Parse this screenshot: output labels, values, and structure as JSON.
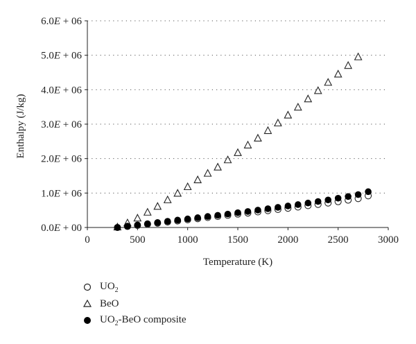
{
  "chart_data": {
    "type": "scatter",
    "title": "",
    "xlabel": "Temperature (K)",
    "ylabel": "Enthalpy (J/kg)",
    "xlim": [
      0,
      3000
    ],
    "ylim": [
      0,
      6000000
    ],
    "x_ticks": [
      0,
      500,
      1000,
      1500,
      2000,
      2500,
      3000
    ],
    "x_tick_labels": [
      "0",
      "500",
      "1000",
      "1500",
      "2000",
      "2500",
      "3000"
    ],
    "y_ticks": [
      0,
      1000000,
      2000000,
      3000000,
      4000000,
      5000000,
      6000000
    ],
    "y_tick_labels": [
      "0.0E + 00",
      "1.0E + 06",
      "2.0E + 06",
      "3.0E + 06",
      "4.0E + 06",
      "5.0E + 06",
      "6.0E + 06"
    ],
    "grid": "horizontal dotted",
    "legend_position": "bottom-left",
    "series": [
      {
        "name": "UO",
        "name_sub": "2",
        "marker": "open-circle",
        "x": [
          300,
          400,
          500,
          600,
          700,
          800,
          900,
          1000,
          1100,
          1200,
          1300,
          1400,
          1500,
          1600,
          1700,
          1800,
          1900,
          2000,
          2100,
          2200,
          2300,
          2400,
          2500,
          2600,
          2700,
          2800
        ],
        "y": [
          0,
          30000,
          60000,
          95000,
          125000,
          160000,
          190000,
          225000,
          255000,
          290000,
          320000,
          355000,
          390000,
          420000,
          455000,
          490000,
          525000,
          560000,
          595000,
          635000,
          670000,
          710000,
          750000,
          795000,
          840000,
          920000
        ]
      },
      {
        "name": "BeO",
        "name_sub": "",
        "marker": "open-triangle",
        "x": [
          300,
          400,
          500,
          600,
          700,
          800,
          900,
          1000,
          1100,
          1200,
          1300,
          1400,
          1500,
          1600,
          1700,
          1800,
          1900,
          2000,
          2100,
          2200,
          2300,
          2400,
          2500,
          2600,
          2700
        ],
        "y": [
          0,
          120000,
          260000,
          430000,
          600000,
          790000,
          980000,
          1170000,
          1370000,
          1560000,
          1740000,
          1950000,
          2160000,
          2380000,
          2580000,
          2800000,
          3020000,
          3250000,
          3480000,
          3720000,
          3960000,
          4200000,
          4440000,
          4690000,
          4940000
        ]
      },
      {
        "name": "UO",
        "name_sub": "2",
        "name_suffix": "-BeO composite",
        "marker": "filled-circle",
        "x": [
          300,
          400,
          500,
          600,
          700,
          800,
          900,
          1000,
          1100,
          1200,
          1300,
          1400,
          1500,
          1600,
          1700,
          1800,
          1900,
          2000,
          2100,
          2200,
          2300,
          2400,
          2500,
          2600,
          2700,
          2800
        ],
        "y": [
          0,
          40000,
          75000,
          110000,
          145000,
          180000,
          215000,
          250000,
          285000,
          320000,
          355000,
          390000,
          430000,
          465000,
          505000,
          545000,
          585000,
          625000,
          665000,
          710000,
          755000,
          800000,
          850000,
          900000,
          955000,
          1040000
        ]
      }
    ]
  }
}
